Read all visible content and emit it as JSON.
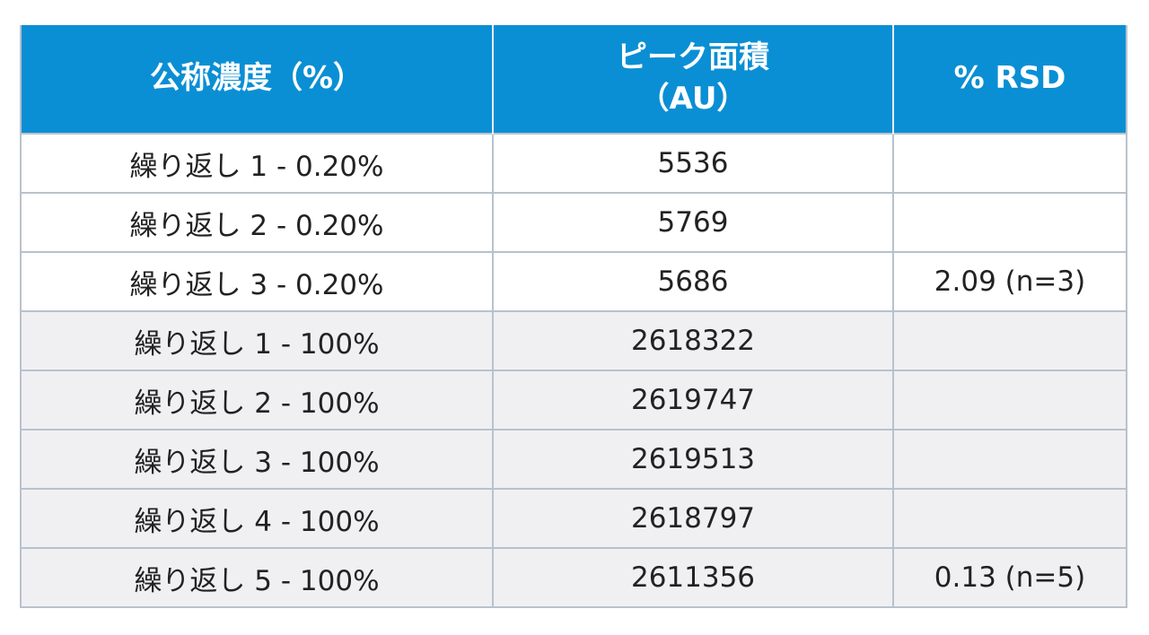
{
  "header": {
    "col1": "公称濃度（%）",
    "col2_line1": "ピーク面積",
    "col2_line2": "（AU）",
    "col3": "% RSD"
  },
  "rows": [
    {
      "label": "繰り返し 1 - 0.20%",
      "area": "5536",
      "rsd": ""
    },
    {
      "label": "繰り返し 2 - 0.20%",
      "area": "5769",
      "rsd": ""
    },
    {
      "label": "繰り返し 3 - 0.20%",
      "area": "5686",
      "rsd": "2.09 (n=3)"
    },
    {
      "label": "繰り返し 1 - 100%",
      "area": "2618322",
      "rsd": ""
    },
    {
      "label": "繰り返し 2 - 100%",
      "area": "2619747",
      "rsd": ""
    },
    {
      "label": "繰り返し 3 - 100%",
      "area": "2619513",
      "rsd": ""
    },
    {
      "label": "繰り返し 4 - 100%",
      "area": "2618797",
      "rsd": ""
    },
    {
      "label": "繰り返し 5 - 100%",
      "area": "2611356",
      "rsd": "0.13 (n=5)"
    }
  ],
  "colors": {
    "header_bg": "#0a8fd4",
    "header_text": "#ffffff",
    "group2_bg": "#f0f0f3",
    "border": "#b8c2cc"
  }
}
